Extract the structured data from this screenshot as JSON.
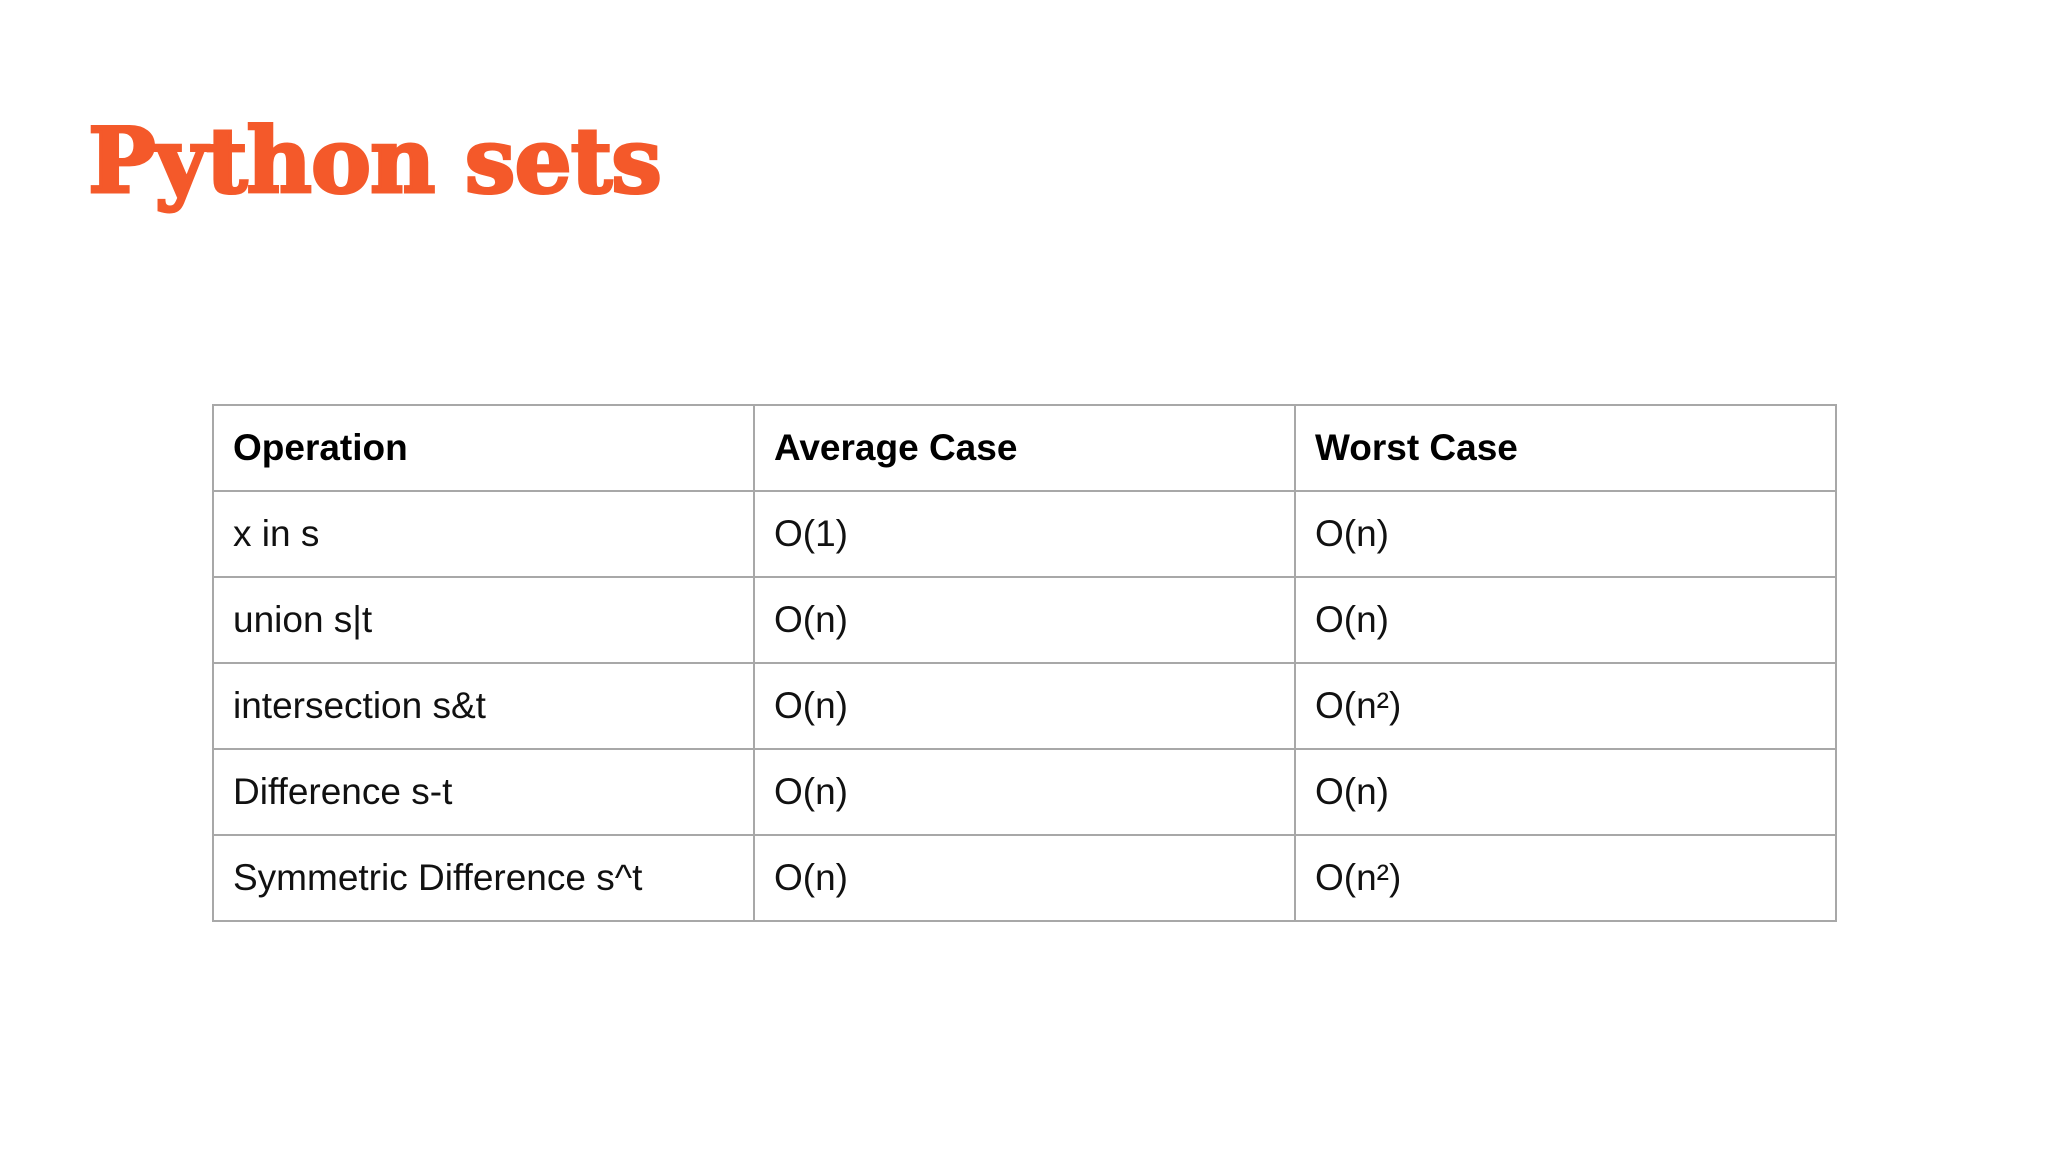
{
  "slide": {
    "title": "Python sets",
    "accent_color": "#f4592a"
  },
  "table": {
    "headers": [
      "Operation",
      "Average Case",
      "Worst Case"
    ],
    "rows": [
      [
        "x in s",
        "O(1)",
        "O(n)"
      ],
      [
        "union s|t",
        "O(n)",
        "O(n)"
      ],
      [
        "intersection s&t",
        "O(n)",
        "O(n²)"
      ],
      [
        "Difference s-t",
        "O(n)",
        "O(n)"
      ],
      [
        "Symmetric Difference s^t",
        "O(n)",
        "O(n²)"
      ]
    ]
  }
}
